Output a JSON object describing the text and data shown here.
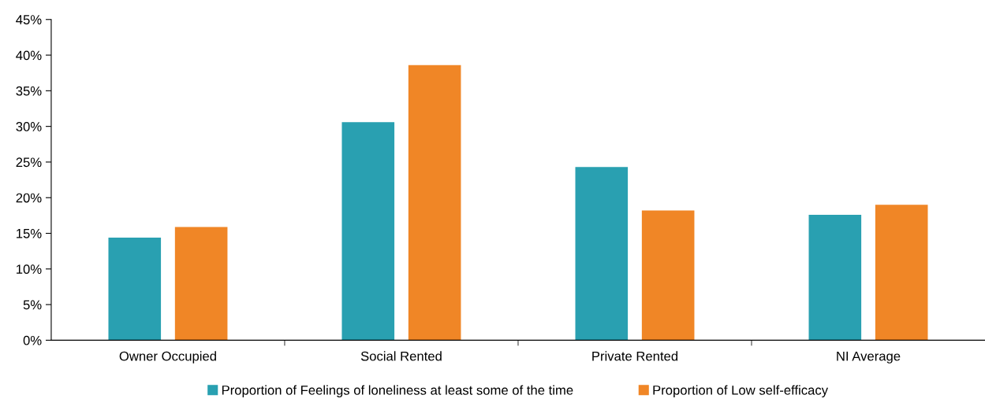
{
  "chart_data": {
    "type": "bar",
    "categories": [
      "Owner Occupied",
      "Social Rented",
      "Private Rented",
      "NI Average"
    ],
    "series": [
      {
        "name": "Proportion of Feelings of loneliness at least some of the time",
        "color": "#29a0b1",
        "values": [
          14.4,
          30.6,
          24.3,
          17.6
        ]
      },
      {
        "name": "Proportion of Low self-efficacy",
        "color": "#f08626",
        "values": [
          15.9,
          38.6,
          18.2,
          19.0
        ]
      }
    ],
    "ylim": [
      0,
      45
    ],
    "yticks": [
      {
        "value": 0,
        "label": "0%"
      },
      {
        "value": 5,
        "label": "5%"
      },
      {
        "value": 10,
        "label": "10%"
      },
      {
        "value": 15,
        "label": "15%"
      },
      {
        "value": 20,
        "label": "20%"
      },
      {
        "value": 25,
        "label": "25%"
      },
      {
        "value": 30,
        "label": "30%"
      },
      {
        "value": 35,
        "label": "35%"
      },
      {
        "value": 40,
        "label": "40%"
      },
      {
        "value": 45,
        "label": "45%"
      }
    ],
    "grid": false,
    "legend": "bottom"
  }
}
